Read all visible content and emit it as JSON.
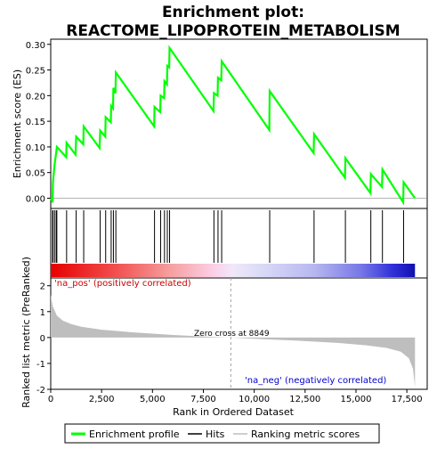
{
  "chart_data": {
    "type": "line",
    "title_line1": "Enrichment plot:",
    "title_line2": "REACTOME_LIPOPROTEIN_METABOLISM",
    "top_panel": {
      "ylabel": "Enrichment score (ES)",
      "ylim": [
        -0.02,
        0.31
      ],
      "yticks": [
        0.0,
        0.05,
        0.1,
        0.15,
        0.2,
        0.25,
        0.3
      ],
      "ytick_labels": [
        "0.00",
        "0.05",
        "0.10",
        "0.15",
        "0.20",
        "0.25",
        "0.30"
      ],
      "series_name": "Enrichment profile",
      "color": "#00ff00",
      "points": [
        [
          0,
          0.0
        ],
        [
          90,
          -0.008
        ],
        [
          110,
          0.03
        ],
        [
          190,
          0.065
        ],
        [
          270,
          0.09
        ],
        [
          300,
          0.1
        ],
        [
          760,
          0.08
        ],
        [
          780,
          0.108
        ],
        [
          1220,
          0.085
        ],
        [
          1250,
          0.12
        ],
        [
          1600,
          0.105
        ],
        [
          1620,
          0.14
        ],
        [
          2400,
          0.098
        ],
        [
          2430,
          0.132
        ],
        [
          2680,
          0.12
        ],
        [
          2700,
          0.158
        ],
        [
          2950,
          0.148
        ],
        [
          2970,
          0.18
        ],
        [
          3060,
          0.175
        ],
        [
          3080,
          0.215
        ],
        [
          3180,
          0.205
        ],
        [
          3200,
          0.245
        ],
        [
          5080,
          0.14
        ],
        [
          5100,
          0.178
        ],
        [
          5380,
          0.168
        ],
        [
          5400,
          0.2
        ],
        [
          5570,
          0.195
        ],
        [
          5590,
          0.228
        ],
        [
          5710,
          0.222
        ],
        [
          5730,
          0.258
        ],
        [
          5820,
          0.255
        ],
        [
          5840,
          0.293
        ],
        [
          8000,
          0.17
        ],
        [
          8020,
          0.205
        ],
        [
          8200,
          0.2
        ],
        [
          8220,
          0.235
        ],
        [
          8380,
          0.23
        ],
        [
          8400,
          0.267
        ],
        [
          10740,
          0.133
        ],
        [
          10760,
          0.209
        ],
        [
          12920,
          0.088
        ],
        [
          12940,
          0.125
        ],
        [
          14460,
          0.04
        ],
        [
          14480,
          0.078
        ],
        [
          15710,
          0.01
        ],
        [
          15730,
          0.047
        ],
        [
          16280,
          0.022
        ],
        [
          16300,
          0.056
        ],
        [
          17320,
          -0.008
        ],
        [
          17340,
          0.031
        ],
        [
          17900,
          0.0
        ]
      ]
    },
    "hits_panel": {
      "hit_positions": [
        90,
        110,
        190,
        270,
        300,
        780,
        1250,
        1620,
        2430,
        2700,
        2970,
        3080,
        3200,
        5100,
        5400,
        5590,
        5730,
        5840,
        8020,
        8220,
        8400,
        10760,
        12940,
        14480,
        15730,
        16300,
        17340
      ]
    },
    "bottom_panel": {
      "ylabel": "Ranked list metric (PreRanked)",
      "xlabel": "Rank in Ordered Dataset",
      "ylim": [
        -2,
        2.3
      ],
      "yticks": [
        -2,
        -1,
        0,
        1,
        2
      ],
      "ytick_labels": [
        "-2",
        "-1",
        "0",
        "1",
        "2"
      ],
      "metric_curve": [
        [
          0,
          1.65
        ],
        [
          100,
          1.2
        ],
        [
          300,
          0.85
        ],
        [
          600,
          0.65
        ],
        [
          1000,
          0.52
        ],
        [
          1500,
          0.42
        ],
        [
          2500,
          0.3
        ],
        [
          4000,
          0.2
        ],
        [
          6000,
          0.1
        ],
        [
          8000,
          0.02
        ],
        [
          8849,
          0.0
        ],
        [
          10000,
          -0.05
        ],
        [
          12000,
          -0.12
        ],
        [
          14000,
          -0.2
        ],
        [
          15500,
          -0.3
        ],
        [
          16500,
          -0.4
        ],
        [
          17200,
          -0.55
        ],
        [
          17600,
          -0.8
        ],
        [
          17800,
          -1.2
        ],
        [
          17900,
          -1.9
        ]
      ],
      "zero_cross_label": "Zero cross at 8849",
      "zero_cross": 8849,
      "pos_label": "'na_pos' (positively correlated)",
      "neg_label": "'na_neg' (negatively correlated)"
    },
    "xlim": [
      0,
      18500
    ],
    "xticks": [
      0,
      2500,
      5000,
      7500,
      10000,
      12500,
      15000,
      17500
    ],
    "xtick_labels": [
      "0",
      "2,500",
      "5,000",
      "7,500",
      "10,000",
      "12,500",
      "15,000",
      "17,500"
    ],
    "n_genes": 17900,
    "legend": {
      "items": [
        "Enrichment profile",
        "Hits",
        "Ranking metric scores"
      ],
      "placement": "bottom"
    },
    "colors": {
      "profile": "#00ff00",
      "hits": "#000000",
      "metric_fill": "#bebebe",
      "zero_line": "#a0a0a0",
      "pos_text": "#cc0000",
      "neg_text": "#0000cc"
    }
  }
}
